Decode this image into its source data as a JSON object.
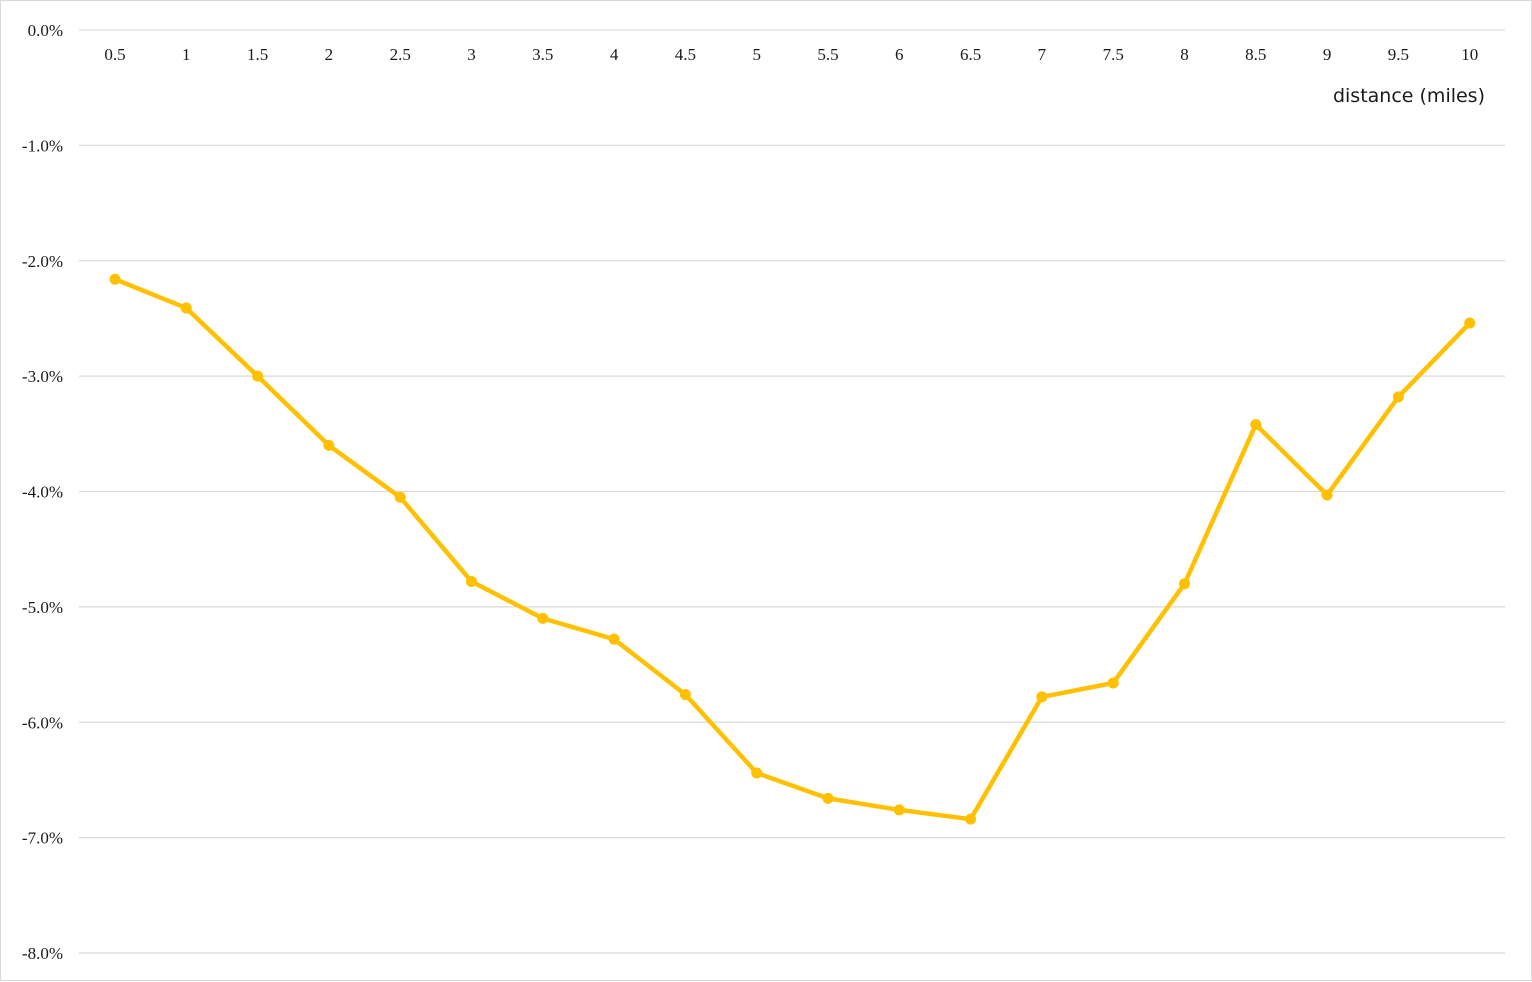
{
  "chart_data": {
    "type": "line",
    "title": "",
    "xlabel": "distance (miles)",
    "ylabel": "",
    "x_position": "top",
    "categories": [
      "0.5",
      "1",
      "1.5",
      "2",
      "2.5",
      "3",
      "3.5",
      "4",
      "4.5",
      "5",
      "5.5",
      "6",
      "6.5",
      "7",
      "7.5",
      "8",
      "8.5",
      "9",
      "9.5",
      "10"
    ],
    "ylim": [
      -8.0,
      0.0
    ],
    "yticks": [
      0.0,
      -1.0,
      -2.0,
      -3.0,
      -4.0,
      -5.0,
      -6.0,
      -7.0,
      -8.0
    ],
    "ytick_labels": [
      "0.0%",
      "-1.0%",
      "-2.0%",
      "-3.0%",
      "-4.0%",
      "-5.0%",
      "-6.0%",
      "-7.0%",
      "-8.0%"
    ],
    "y_unit": "%",
    "grid": true,
    "legend": "none",
    "series": [
      {
        "color": "#ffc000",
        "marker": "circle",
        "values": [
          -2.16,
          -2.41,
          -3.0,
          -3.6,
          -4.05,
          -4.78,
          -5.1,
          -5.28,
          -5.76,
          -6.44,
          -6.66,
          -6.76,
          -6.84,
          -5.78,
          -5.66,
          -4.8,
          -3.42,
          -4.03,
          -3.18,
          -2.54
        ]
      }
    ]
  }
}
